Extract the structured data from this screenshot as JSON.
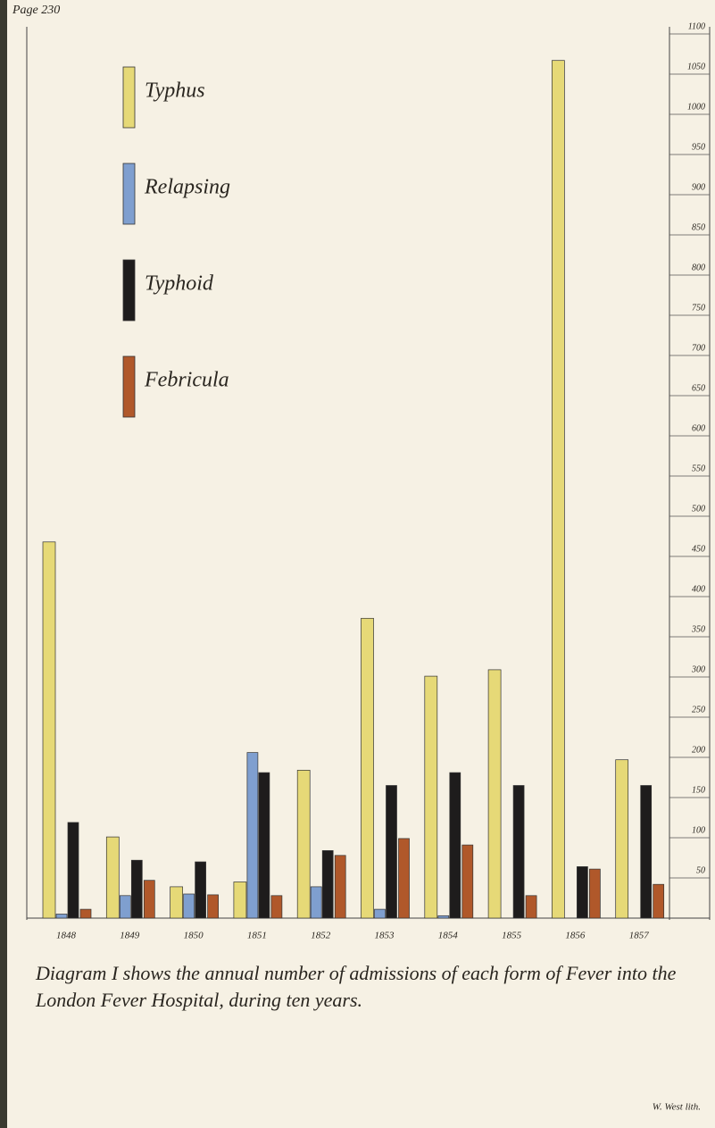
{
  "chart_data": {
    "type": "bar",
    "page": "Page 230",
    "title": "Diagram I shows the annual number of admissions of each form of Fever into the London Fever Hospital, during ten years.",
    "engraver": "W. West lith.",
    "categories": [
      "1848",
      "1849",
      "1850",
      "1851",
      "1852",
      "1853",
      "1854",
      "1855",
      "1856",
      "1857"
    ],
    "series": [
      {
        "name": "Typhus",
        "color": "#e6d977",
        "values": [
          468,
          101,
          39,
          45,
          184,
          373,
          301,
          309,
          1067,
          197
        ]
      },
      {
        "name": "Relapsing",
        "color": "#7f9fcf",
        "values": [
          5,
          28,
          30,
          206,
          39,
          11,
          3,
          null,
          null,
          null
        ]
      },
      {
        "name": "Typhoid",
        "color": "#1e1c1c",
        "values": [
          119,
          72,
          70,
          181,
          84,
          165,
          181,
          165,
          64,
          165
        ]
      },
      {
        "name": "Febricula",
        "color": "#b0582a",
        "values": [
          11,
          47,
          29,
          28,
          78,
          99,
          91,
          28,
          61,
          42
        ]
      }
    ],
    "ylim": [
      0,
      1100
    ],
    "yticks": [
      50,
      100,
      150,
      200,
      250,
      300,
      350,
      400,
      450,
      500,
      550,
      600,
      650,
      700,
      750,
      800,
      850,
      900,
      950,
      1000,
      1050,
      1100
    ]
  }
}
